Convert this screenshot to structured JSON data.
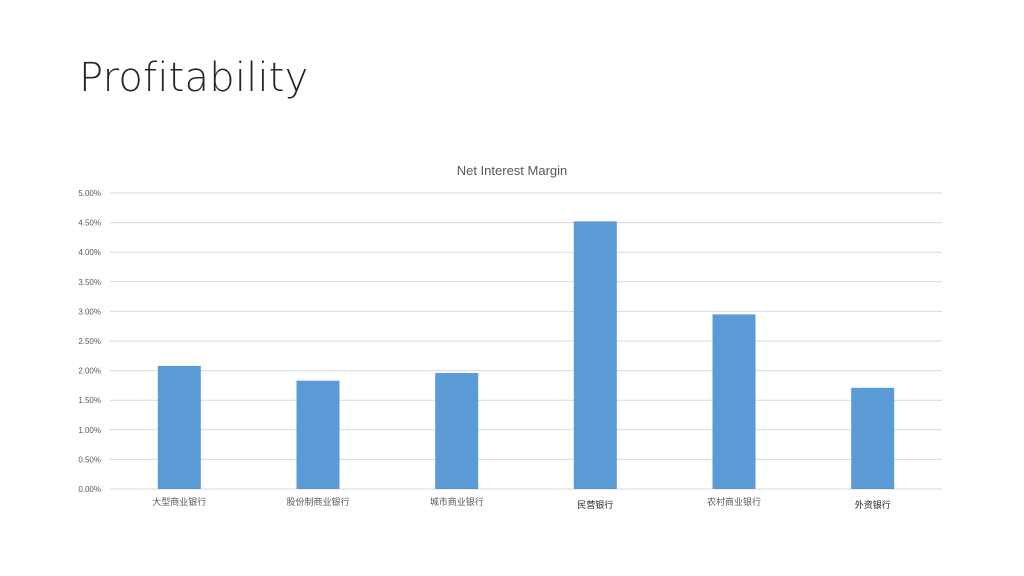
{
  "slide": {
    "title": "Profitability"
  },
  "chart_data": {
    "type": "bar",
    "title": "Net Interest Margin",
    "xlabel": "",
    "ylabel": "",
    "categories": [
      "大型商业银行",
      "股份制商业银行",
      "城市商业银行",
      "民营银行",
      "农村商业银行",
      "外资银行"
    ],
    "values": [
      2.08,
      1.83,
      1.96,
      4.52,
      2.95,
      1.71
    ],
    "ylim": [
      0,
      5
    ],
    "ytick_step": 0.5,
    "ytick_labels": [
      "0.00%",
      "0.50%",
      "1.00%",
      "1.50%",
      "2.00%",
      "2.50%",
      "3.00%",
      "3.50%",
      "4.00%",
      "4.50%",
      "5.00%"
    ],
    "grid": true,
    "legend": "none",
    "bar_color": "#5b9bd5",
    "grid_color": "#d9d9d9"
  }
}
